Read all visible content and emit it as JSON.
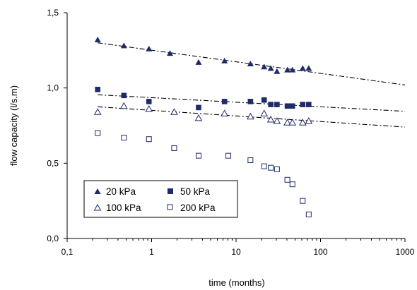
{
  "chart_data": {
    "type": "scatter",
    "xscale": "log",
    "xlim": [
      0.1,
      1000
    ],
    "ylim": [
      0.0,
      1.5
    ],
    "xticks": [
      0.1,
      1,
      10,
      100,
      1000
    ],
    "xtick_labels": [
      "0,1",
      "1",
      "10",
      "100",
      "1000"
    ],
    "yticks": [
      0.0,
      0.5,
      1.0,
      1.5
    ],
    "ytick_labels": [
      "0,0",
      "0,5",
      "1,0",
      "1,5"
    ],
    "xlabel": "time  (months)",
    "ylabel": "flow capacity  (l/s.m)",
    "grid": false,
    "legend_position": "lower-left",
    "series": [
      {
        "name": "20 kPa",
        "marker": "filled-triangle",
        "color": "#1f2a6b",
        "x": [
          0.23,
          0.47,
          0.93,
          1.65,
          3.6,
          7.3,
          14.8,
          21.5,
          25.8,
          30.5,
          40.5,
          46.5,
          61.5,
          72.5
        ],
        "y": [
          1.32,
          1.28,
          1.26,
          1.23,
          1.17,
          1.18,
          1.16,
          1.14,
          1.13,
          1.11,
          1.12,
          1.12,
          1.13,
          1.13
        ],
        "trend": [
          [
            0.23,
            1.3
          ],
          [
            1000,
            1.02
          ]
        ]
      },
      {
        "name": "50 kPa",
        "marker": "filled-square",
        "color": "#1f2a6b",
        "x": [
          0.23,
          0.47,
          0.93,
          3.6,
          7.3,
          14.8,
          21.5,
          25.8,
          30.5,
          40.5,
          46.5,
          61.5,
          72.5
        ],
        "y": [
          0.99,
          0.95,
          0.91,
          0.87,
          0.91,
          0.91,
          0.92,
          0.89,
          0.89,
          0.88,
          0.88,
          0.89,
          0.89
        ],
        "trend": [
          [
            0.23,
            0.955
          ],
          [
            1000,
            0.845
          ]
        ]
      },
      {
        "name": "100 kPa",
        "marker": "open-triangle",
        "color": "#1f2a6b",
        "x": [
          0.23,
          0.47,
          0.93,
          1.85,
          3.6,
          7.3,
          14.8,
          21.5,
          25.8,
          30.5,
          40.5,
          46.5,
          61.5,
          72.5
        ],
        "y": [
          0.84,
          0.88,
          0.86,
          0.84,
          0.8,
          0.83,
          0.81,
          0.83,
          0.79,
          0.78,
          0.77,
          0.77,
          0.77,
          0.78
        ],
        "trend": [
          [
            0.23,
            0.875
          ],
          [
            1000,
            0.74
          ]
        ]
      },
      {
        "name": "200 kPa",
        "marker": "open-square",
        "color": "#1f2a6b",
        "x": [
          0.23,
          0.47,
          0.93,
          1.85,
          3.6,
          8.1,
          14.8,
          21.5,
          25.8,
          30.5,
          40.5,
          46.5,
          61.5,
          72.5
        ],
        "y": [
          0.7,
          0.67,
          0.66,
          0.6,
          0.55,
          0.55,
          0.52,
          0.48,
          0.47,
          0.46,
          0.39,
          0.36,
          0.25,
          0.16
        ]
      }
    ]
  }
}
